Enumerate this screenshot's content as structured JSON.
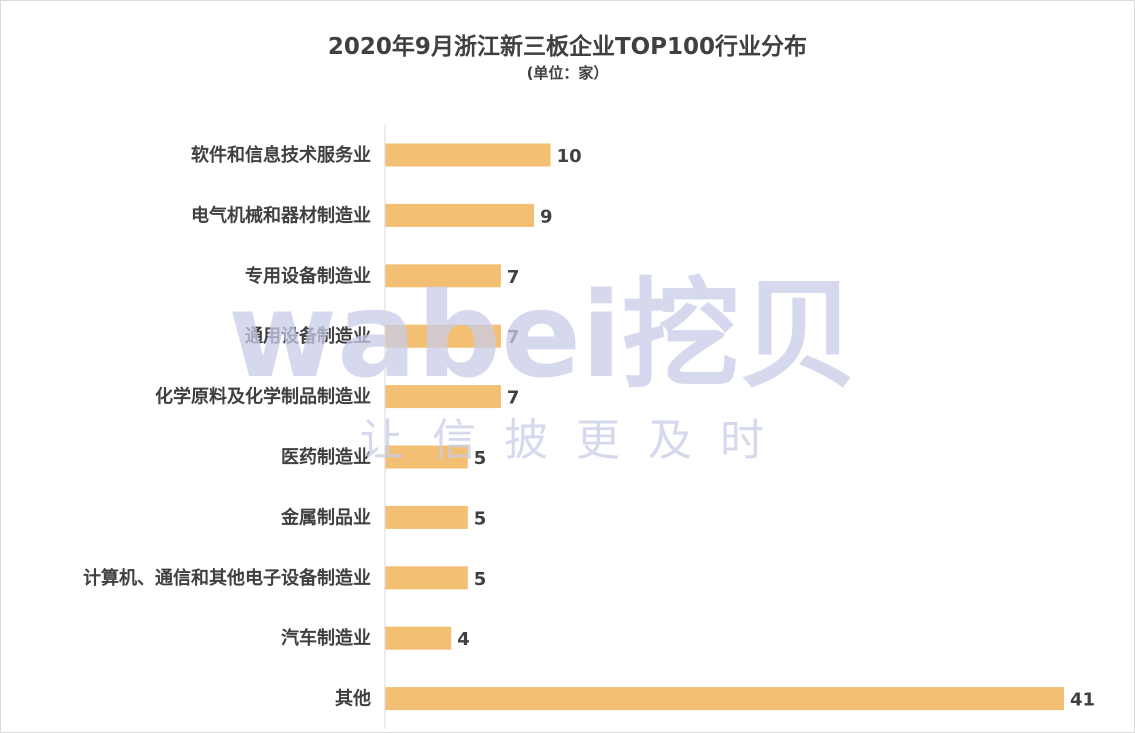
{
  "chart_data": {
    "type": "bar",
    "orientation": "horizontal",
    "title": "2020年9月浙江新三板企业TOP100行业分布",
    "subtitle": "(单位：家）",
    "categories": [
      "软件和信息技术服务业",
      "电气机械和器材制造业",
      "专用设备制造业",
      "通用设备制造业",
      "化学原料及化学制品制造业",
      "医药制造业",
      "金属制品业",
      "计算机、通信和其他电子设备制造业",
      "汽车制造业",
      "其他"
    ],
    "values": [
      10,
      9,
      7,
      7,
      7,
      5,
      5,
      5,
      4,
      41
    ],
    "xlim": [
      0,
      41
    ],
    "grid": false,
    "bar_color": "#f2bf73",
    "axis_color": "#d9d9d9"
  },
  "watermark": {
    "brand": "wabei挖贝",
    "slogan": "让信披更及时",
    "color": "#c9cce8"
  }
}
